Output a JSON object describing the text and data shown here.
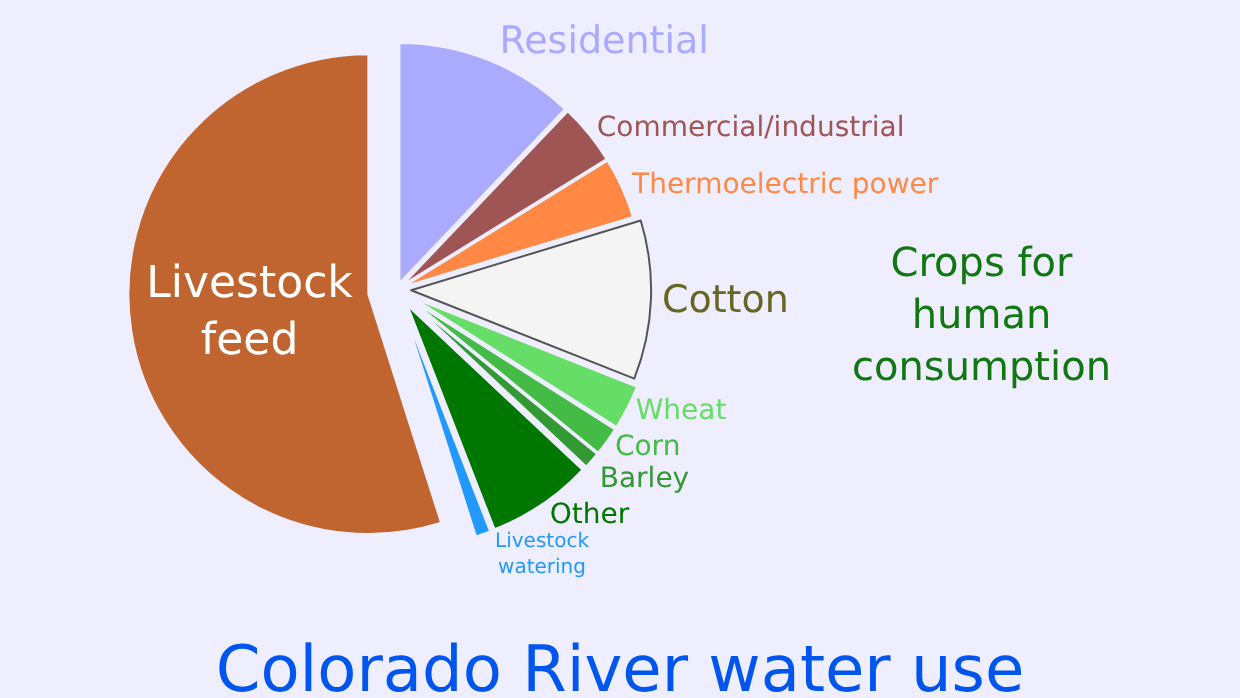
{
  "chart_data": {
    "type": "pie",
    "title": "Colorado River water use",
    "categories": [
      "Residential",
      "Commercial/industrial",
      "Thermoelectric power",
      "Cotton",
      "Wheat",
      "Corn",
      "Barley",
      "Other",
      "Livestock watering",
      "Livestock feed"
    ],
    "values": [
      12.1,
      4.1,
      4.1,
      10.7,
      3.0,
      1.9,
      1.1,
      7.1,
      1.0,
      54.9
    ],
    "colors": [
      "#aaaaff",
      "#a05555",
      "#ff8844",
      "#f4f4f4",
      "#66dd66",
      "#44bb44",
      "#339933",
      "#007700",
      "#2299ff",
      "#c0652f"
    ],
    "annotations": [
      "Crops for human consumption"
    ],
    "legend": false
  }
}
